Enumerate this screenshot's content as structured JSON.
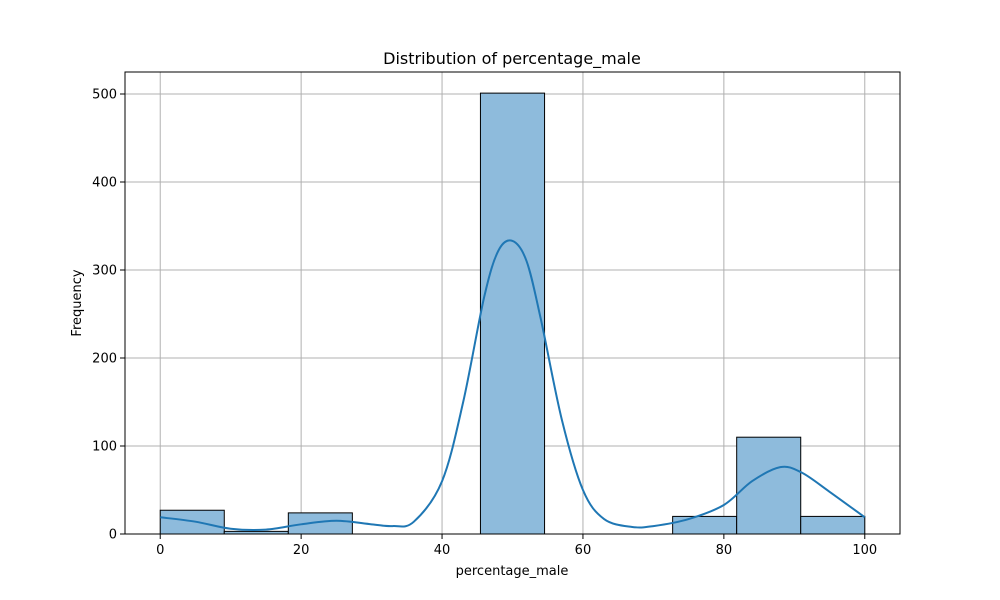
{
  "chart_data": {
    "type": "bar",
    "title": "Distribution of percentage_male",
    "xlabel": "percentage_male",
    "ylabel": "Frequency",
    "xlim": [
      -5,
      105
    ],
    "ylim": [
      0,
      525
    ],
    "xticks": [
      0,
      20,
      40,
      60,
      80,
      100
    ],
    "yticks": [
      0,
      100,
      200,
      300,
      400,
      500
    ],
    "grid": true,
    "bins": [
      {
        "x0": 0,
        "x1": 9.09,
        "count": 27
      },
      {
        "x0": 9.09,
        "x1": 18.18,
        "count": 3
      },
      {
        "x0": 18.18,
        "x1": 27.27,
        "count": 24
      },
      {
        "x0": 27.27,
        "x1": 36.36,
        "count": 0
      },
      {
        "x0": 36.36,
        "x1": 45.45,
        "count": 0
      },
      {
        "x0": 45.45,
        "x1": 54.55,
        "count": 501
      },
      {
        "x0": 54.55,
        "x1": 63.64,
        "count": 0
      },
      {
        "x0": 63.64,
        "x1": 72.73,
        "count": 0
      },
      {
        "x0": 72.73,
        "x1": 81.82,
        "count": 20
      },
      {
        "x0": 81.82,
        "x1": 90.91,
        "count": 110
      },
      {
        "x0": 90.91,
        "x1": 100,
        "count": 20
      }
    ],
    "kde": {
      "x": [
        0,
        5,
        10,
        15,
        20,
        25,
        30,
        33,
        36,
        40,
        43,
        46,
        48,
        50,
        52,
        54,
        57,
        60,
        63,
        67,
        70,
        75,
        80,
        84,
        88,
        91,
        95,
        100
      ],
      "y": [
        19,
        14,
        6,
        5,
        11,
        15,
        11,
        9,
        14,
        60,
        150,
        270,
        322,
        333,
        310,
        245,
        130,
        50,
        17,
        8,
        9,
        17,
        33,
        60,
        76,
        70,
        48,
        19
      ]
    },
    "colors": {
      "bar_fill": "#8ebbdc",
      "bar_edge": "#000000",
      "kde_line": "#1f77b4",
      "grid": "#b0b0b0"
    }
  }
}
